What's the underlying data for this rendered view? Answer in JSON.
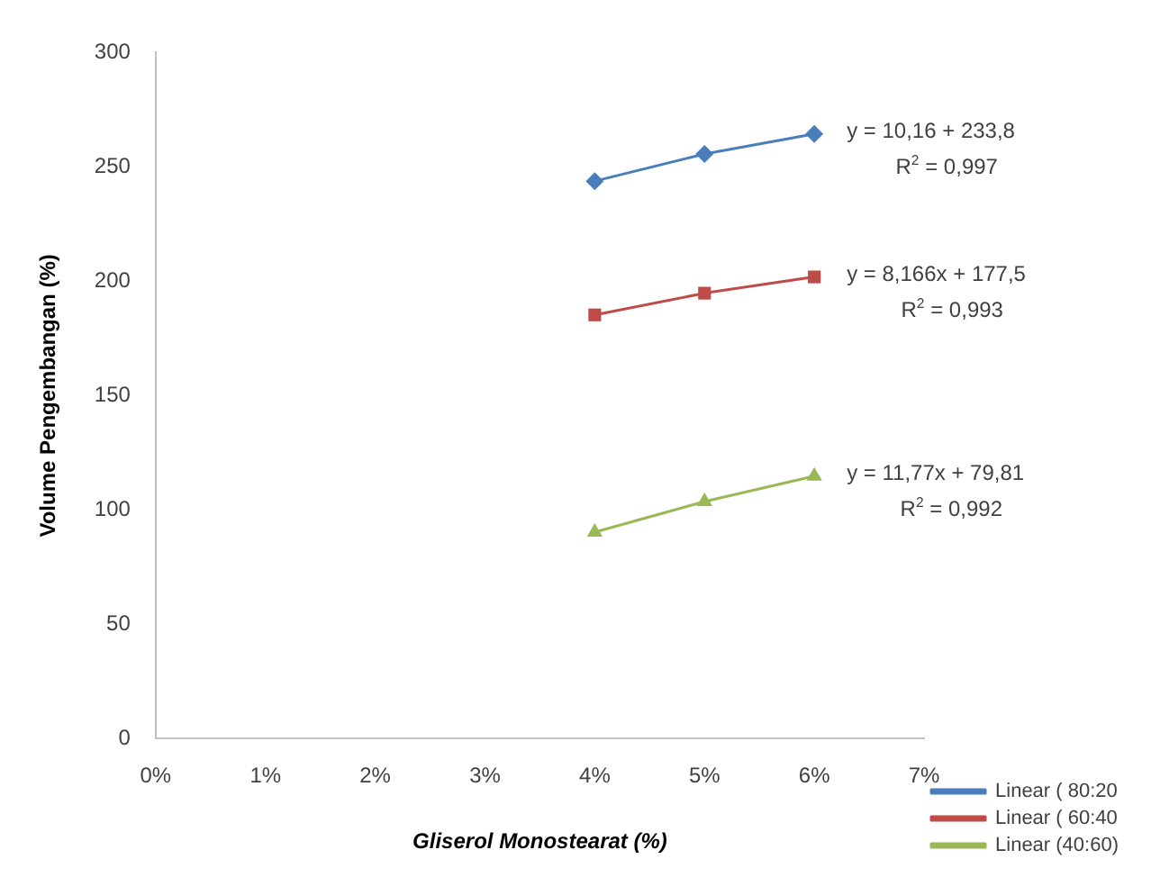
{
  "chart_data": {
    "type": "line",
    "xlabel": "Gliserol Monostearat (%)",
    "ylabel": "Volume Pengembangan (%)",
    "x": [
      4,
      5,
      6
    ],
    "series": [
      {
        "name": "Linear ( 80:20",
        "color": "#4a7ebb",
        "values": [
          243.8,
          255.7,
          264.4
        ],
        "marker": "diamond"
      },
      {
        "name": "Linear ( 60:40",
        "color": "#be4b48",
        "values": [
          185.3,
          194.8,
          201.9
        ],
        "marker": "square"
      },
      {
        "name": "Linear (40:60)",
        "color": "#98b954",
        "values": [
          90.3,
          103.7,
          114.8
        ],
        "marker": "triangle"
      }
    ],
    "xlim": [
      0,
      7
    ],
    "xticks": [
      {
        "value": 0,
        "label": "0%"
      },
      {
        "value": 1,
        "label": "1%"
      },
      {
        "value": 2,
        "label": "2%"
      },
      {
        "value": 3,
        "label": "3%"
      },
      {
        "value": 4,
        "label": "4%"
      },
      {
        "value": 5,
        "label": "5%"
      },
      {
        "value": 6,
        "label": "6%"
      },
      {
        "value": 7,
        "label": "7%"
      }
    ],
    "ylim": [
      0,
      300
    ],
    "yticks": [
      0,
      50,
      100,
      150,
      200,
      250,
      300
    ],
    "grid": false,
    "legend": "bottom right",
    "line_style": "solid",
    "annotations": [
      "y = 10,16 + 233,8\nR$^{2}$ = 0,997",
      "y = 8,166x + 177,5\nR$^{2}$ = 0,993",
      "y = 11,77x + 79,81\nR$^{2}$ = 0,992"
    ]
  }
}
